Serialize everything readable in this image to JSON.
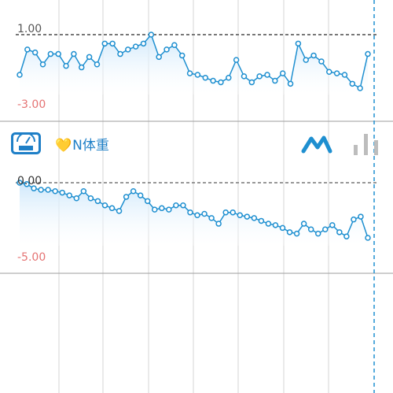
{
  "top_chart": {
    "max_label": "1.00",
    "min_label": "-3.00",
    "series": [
      -2.1,
      -0.4,
      -0.6,
      -1.4,
      -0.7,
      -0.7,
      -1.5,
      -0.7,
      -1.6,
      -0.9,
      -1.4,
      0,
      0,
      -0.7,
      -0.4,
      -0.2,
      0.0,
      0.6,
      -0.9,
      -0.4,
      -0.1,
      -0.8,
      -2.0,
      -2.1,
      -2.3,
      -2.5,
      -2.6,
      -2.3,
      -1.1,
      -2.2,
      -2.6,
      -2.2,
      -2.1,
      -2.5,
      -2.0,
      -2.7,
      0.0,
      -1.1,
      -0.8,
      -1.2,
      -1.9,
      -2.0,
      -2.1,
      -2.7,
      -3.0,
      -0.7
    ],
    "colors": {
      "line": "#1e8fd0",
      "fill": "#cfe8fb",
      "max_label": "#555555",
      "min_label": "#e57373"
    }
  },
  "panel": {
    "icon": "scale-icon",
    "heart": "💛",
    "title": "N体重",
    "chart_toggle_icon": "line-chart-icon",
    "bar_toggle_icon": "bar-chart-icon",
    "accent": "#1e8fd0"
  },
  "bottom_chart": {
    "max_label": "0.00",
    "min_label": "-5.00",
    "series": [
      -0.0,
      -0.1,
      -0.4,
      -0.5,
      -0.5,
      -0.6,
      -0.7,
      -0.9,
      -1.1,
      -0.6,
      -1.1,
      -1.3,
      -1.6,
      -1.8,
      -2.0,
      -1.0,
      -0.6,
      -0.9,
      -1.3,
      -1.9,
      -1.8,
      -1.9,
      -1.6,
      -1.6,
      -2.1,
      -2.3,
      -2.2,
      -2.5,
      -2.9,
      -2.1,
      -2.1,
      -2.3,
      -2.4,
      -2.5,
      -2.7,
      -2.9,
      -3.0,
      -3.2,
      -3.5,
      -3.6,
      -2.9,
      -3.3,
      -3.6,
      -3.3,
      -3.0,
      -3.5,
      -3.8,
      -2.6,
      -2.4,
      -3.9
    ],
    "colors": {
      "line": "#1e8fd0",
      "fill": "#cfe8fb",
      "max_label": "#333333",
      "min_label": "#e57373"
    }
  }
}
